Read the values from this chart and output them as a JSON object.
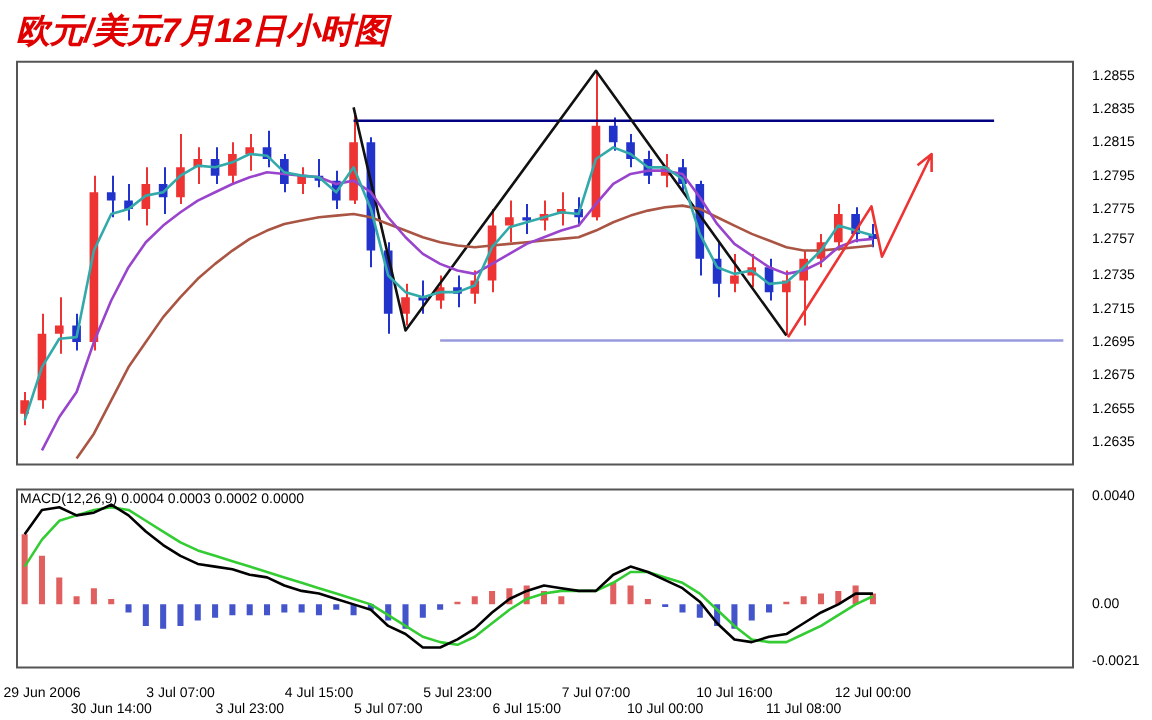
{
  "chart_data": [
    {
      "type": "candlestick",
      "title": "欧元/美元7月12日小时图",
      "tick_labels": "y",
      "marker": "none",
      "categories": [
        null,
        null,
        null,
        null,
        null,
        null,
        null,
        null,
        null,
        null,
        null,
        null,
        null,
        null,
        null,
        null,
        null,
        null,
        null,
        null,
        null,
        null,
        null,
        null,
        null,
        null,
        null,
        null,
        null,
        null,
        null,
        null,
        null,
        null,
        null,
        null,
        null,
        null,
        null,
        null,
        null,
        null,
        null,
        null,
        null,
        null,
        null,
        null,
        null,
        null,
        null,
        null,
        null,
        null,
        null,
        null,
        null,
        null,
        null,
        null,
        null
      ],
      "ohlc": [
        [
          1.2652,
          1.2665,
          1.2645,
          1.266
        ],
        [
          1.266,
          1.2712,
          1.2655,
          1.27
        ],
        [
          1.27,
          1.2722,
          1.2688,
          1.2705
        ],
        [
          1.2705,
          1.2712,
          1.269,
          1.2695
        ],
        [
          1.2695,
          1.2795,
          1.269,
          1.2785
        ],
        [
          1.2785,
          1.2795,
          1.277,
          1.278
        ],
        [
          1.278,
          1.279,
          1.2768,
          1.2775
        ],
        [
          1.2775,
          1.28,
          1.2765,
          1.279
        ],
        [
          1.279,
          1.28,
          1.2772,
          1.2782
        ],
        [
          1.2782,
          1.282,
          1.2778,
          1.28
        ],
        [
          1.28,
          1.2812,
          1.279,
          1.2805
        ],
        [
          1.2805,
          1.2812,
          1.279,
          1.2795
        ],
        [
          1.2795,
          1.2815,
          1.279,
          1.2808
        ],
        [
          1.2808,
          1.282,
          1.2798,
          1.2812
        ],
        [
          1.2812,
          1.2822,
          1.28,
          1.2805
        ],
        [
          1.2805,
          1.2808,
          1.2785,
          1.279
        ],
        [
          1.279,
          1.28,
          1.2784,
          1.2795
        ],
        [
          1.2795,
          1.2805,
          1.2788,
          1.2792
        ],
        [
          1.2792,
          1.2798,
          1.2775,
          1.278
        ],
        [
          1.278,
          1.2832,
          1.2778,
          1.2815
        ],
        [
          1.2815,
          1.2818,
          1.274,
          1.275
        ],
        [
          1.275,
          1.2755,
          1.27,
          1.2712
        ],
        [
          1.2712,
          1.273,
          1.2705,
          1.2722
        ],
        [
          1.2722,
          1.2732,
          1.2712,
          1.272
        ],
        [
          1.272,
          1.2735,
          1.2715,
          1.2728
        ],
        [
          1.2728,
          1.2735,
          1.2716,
          1.2724
        ],
        [
          1.2724,
          1.2738,
          1.2718,
          1.2732
        ],
        [
          1.2732,
          1.2775,
          1.2725,
          1.2765
        ],
        [
          1.2765,
          1.278,
          1.2755,
          1.277
        ],
        [
          1.277,
          1.2778,
          1.276,
          1.2768
        ],
        [
          1.2768,
          1.278,
          1.2762,
          1.2772
        ],
        [
          1.2772,
          1.2785,
          1.2765,
          1.2775
        ],
        [
          1.2775,
          1.2782,
          1.2765,
          1.277
        ],
        [
          1.277,
          1.2858,
          1.2768,
          1.2825
        ],
        [
          1.2825,
          1.283,
          1.281,
          1.2815
        ],
        [
          1.2815,
          1.282,
          1.28,
          1.2805
        ],
        [
          1.2805,
          1.281,
          1.279,
          1.2795
        ],
        [
          1.2795,
          1.2808,
          1.2788,
          1.28
        ],
        [
          1.28,
          1.2805,
          1.2785,
          1.279
        ],
        [
          1.279,
          1.2792,
          1.2735,
          1.2745
        ],
        [
          1.2745,
          1.2755,
          1.2722,
          1.273
        ],
        [
          1.273,
          1.2748,
          1.2725,
          1.2735
        ],
        [
          1.2735,
          1.2748,
          1.2728,
          1.274
        ],
        [
          1.274,
          1.2745,
          1.272,
          1.2725
        ],
        [
          1.2725,
          1.2738,
          1.2699,
          1.2732
        ],
        [
          1.2732,
          1.275,
          1.2705,
          1.2745
        ],
        [
          1.2745,
          1.276,
          1.274,
          1.2755
        ],
        [
          1.2755,
          1.2778,
          1.275,
          1.2772
        ],
        [
          1.2772,
          1.2776,
          1.2755,
          1.276
        ],
        [
          1.276,
          1.2766,
          1.2752,
          1.2757
        ],
        null,
        null,
        null,
        null,
        null,
        null,
        null,
        null,
        null,
        null,
        null
      ],
      "colors": [
        "#ee3333",
        "#ee3333",
        "#ee3333",
        "#2233cc",
        "#ee3333",
        "#2233cc",
        "#2233cc",
        "#ee3333",
        "#2233cc",
        "#ee3333",
        "#ee3333",
        "#2233cc",
        "#ee3333",
        "#ee3333",
        "#2233cc",
        "#2233cc",
        "#ee3333",
        "#2233cc",
        "#2233cc",
        "#ee3333",
        "#2233cc",
        "#2233cc",
        "#ee3333",
        "#2233cc",
        "#ee3333",
        "#2233cc",
        "#ee3333",
        "#ee3333",
        "#ee3333",
        "#2233cc",
        "#ee3333",
        "#ee3333",
        "#2233cc",
        "#ee3333",
        "#2233cc",
        "#2233cc",
        "#2233cc",
        "#ee3333",
        "#2233cc",
        "#2233cc",
        "#2233cc",
        "#ee3333",
        "#ee3333",
        "#2233cc",
        "#ee3333",
        "#ee3333",
        "#ee3333",
        "#ee3333",
        "#2233cc",
        "#2233cc",
        null,
        null,
        null,
        null,
        null,
        null,
        null,
        null,
        null,
        null,
        null
      ],
      "series": [
        {
          "type": "line",
          "color": "#33aaaa",
          "values": [
            1.2648,
            1.268,
            1.2697,
            1.2698,
            1.275,
            1.2772,
            1.2775,
            1.2783,
            1.2785,
            1.2795,
            1.2801,
            1.28,
            1.2803,
            1.2808,
            1.2807,
            1.2797,
            1.2795,
            1.2794,
            1.2785,
            1.28,
            1.2775,
            1.2735,
            1.2725,
            1.2722,
            1.2725,
            1.2725,
            1.2729,
            1.2752,
            1.2764,
            1.2767,
            1.277,
            1.2773,
            1.2772,
            1.2805,
            1.2812,
            1.2808,
            1.28,
            1.28,
            1.2793,
            1.276,
            1.274,
            1.2736,
            1.2738,
            1.273,
            1.2731,
            1.274,
            1.275,
            1.2765,
            1.2762,
            1.2759,
            null,
            null,
            null,
            null,
            null,
            null,
            null,
            null,
            null,
            null,
            null
          ]
        },
        {
          "type": "line",
          "color": "#9944cc",
          "values": [
            null,
            1.263,
            1.265,
            1.2665,
            1.2695,
            1.272,
            1.274,
            1.2755,
            1.2765,
            1.2773,
            1.278,
            1.2785,
            1.279,
            1.2794,
            1.2797,
            1.2796,
            1.2795,
            1.2794,
            1.279,
            1.2792,
            1.2785,
            1.277,
            1.2758,
            1.2748,
            1.2742,
            1.2738,
            1.2736,
            1.2742,
            1.2748,
            1.2754,
            1.2758,
            1.2762,
            1.2765,
            1.2778,
            1.279,
            1.2796,
            1.2798,
            1.2798,
            1.2796,
            1.2782,
            1.2766,
            1.2754,
            1.2747,
            1.274,
            1.2736,
            1.2738,
            1.2743,
            1.2752,
            1.2756,
            1.2757,
            null,
            null,
            null,
            null,
            null,
            null,
            null,
            null,
            null,
            null,
            null
          ]
        },
        {
          "type": "line",
          "color": "#aa5544",
          "values": [
            null,
            null,
            null,
            1.2625,
            1.264,
            1.266,
            1.268,
            1.2695,
            1.271,
            1.2722,
            1.2733,
            1.2742,
            1.275,
            1.2757,
            1.2762,
            1.2766,
            1.2768,
            1.277,
            1.2771,
            1.2772,
            1.277,
            1.2766,
            1.2762,
            1.2758,
            1.2755,
            1.2753,
            1.2752,
            1.2753,
            1.2754,
            1.2755,
            1.2756,
            1.2757,
            1.2758,
            1.2762,
            1.2767,
            1.2771,
            1.2774,
            1.2776,
            1.2777,
            1.2775,
            1.277,
            1.2765,
            1.276,
            1.2756,
            1.2752,
            1.275,
            1.275,
            1.2751,
            1.2752,
            1.2753,
            null,
            null,
            null,
            null,
            null,
            null,
            null,
            null,
            null,
            null,
            null
          ]
        },
        {
          "type": "line",
          "color": "#111111",
          "values": [
            null,
            null,
            null,
            null,
            null,
            null,
            null,
            null,
            null,
            null,
            null,
            null,
            null,
            null,
            null,
            null,
            null,
            null,
            null,
            1.2836,
            null,
            null,
            1.2702,
            null,
            null,
            null,
            null,
            null,
            null,
            null,
            null,
            null,
            null,
            1.2858,
            null,
            null,
            null,
            null,
            null,
            null,
            null,
            null,
            null,
            null,
            1.2699,
            null,
            null,
            null,
            null,
            null,
            null,
            null,
            null,
            null,
            null,
            null,
            null,
            null,
            null,
            null,
            null
          ]
        },
        {
          "type": "line",
          "color": "#000080",
          "values": [
            null,
            null,
            null,
            null,
            null,
            null,
            null,
            null,
            null,
            null,
            null,
            null,
            null,
            null,
            null,
            null,
            null,
            null,
            null,
            1.2828,
            null,
            null,
            null,
            null,
            null,
            null,
            null,
            null,
            null,
            null,
            null,
            null,
            null,
            null,
            null,
            null,
            null,
            null,
            null,
            null,
            null,
            null,
            null,
            null,
            null,
            null,
            null,
            null,
            null,
            null,
            null,
            null,
            null,
            null,
            null,
            null,
            1.2828,
            null,
            null,
            null,
            null
          ]
        },
        {
          "type": "line",
          "color": "#9999dd",
          "values": [
            null,
            null,
            null,
            null,
            null,
            null,
            null,
            null,
            null,
            null,
            null,
            null,
            null,
            null,
            null,
            null,
            null,
            null,
            null,
            null,
            null,
            null,
            null,
            null,
            1.2696,
            null,
            null,
            null,
            null,
            null,
            null,
            null,
            null,
            null,
            null,
            null,
            null,
            null,
            null,
            null,
            null,
            null,
            null,
            null,
            null,
            null,
            null,
            null,
            null,
            null,
            null,
            null,
            null,
            null,
            null,
            null,
            null,
            null,
            null,
            null,
            1.2696
          ]
        }
      ],
      "ylim": [
        1.2622,
        1.2864
      ],
      "yticks": [
        1.2855,
        1.2835,
        1.2815,
        1.2795,
        1.2775,
        1.2757,
        1.2735,
        1.2715,
        1.2695,
        1.2675,
        1.2655,
        1.2635
      ]
    },
    {
      "type": "bar",
      "annotations": [
        "MACD(12,26,9) 0.0004 0.0003 0.0002 0.0000"
      ],
      "marker": "none",
      "categories": [
        null,
        "29 Jun 2006",
        null,
        null,
        null,
        "30 Jun 14:00",
        null,
        null,
        null,
        "3 Jul 07:00",
        null,
        null,
        null,
        "3 Jul 23:00",
        null,
        null,
        null,
        "4 Jul 15:00",
        null,
        null,
        null,
        "5 Jul 07:00",
        null,
        null,
        null,
        "5 Jul 23:00",
        null,
        null,
        null,
        "6 Jul 15:00",
        null,
        null,
        null,
        "7 Jul 07:00",
        null,
        null,
        null,
        "10 Jul 00:00",
        null,
        null,
        null,
        "10 Jul 16:00",
        null,
        null,
        null,
        "11 Jul 08:00",
        null,
        null,
        null,
        "12 Jul 00:00",
        null,
        null,
        null,
        null,
        null,
        null,
        null,
        null,
        null,
        null,
        null
      ],
      "series": [
        {
          "type": "bar",
          "color": "#e06060",
          "values": [
            0.0026,
            0.0018,
            0.001,
            0.0003,
            0.0006,
            0.0002,
            null,
            null,
            null,
            null,
            null,
            null,
            null,
            null,
            null,
            null,
            null,
            null,
            null,
            null,
            null,
            null,
            null,
            null,
            null,
            0.0001,
            0.0003,
            0.0005,
            0.0006,
            0.0007,
            0.0005,
            0.0003,
            0.0,
            0.0,
            0.0008,
            0.0007,
            0.0002,
            null,
            null,
            null,
            null,
            null,
            null,
            null,
            0.0001,
            0.0003,
            0.0004,
            0.0005,
            0.0007,
            0.0004,
            null,
            null,
            null,
            null,
            null,
            null,
            null,
            null,
            null,
            null,
            null
          ]
        },
        {
          "type": "bar",
          "color": "#4455cc",
          "values": [
            null,
            null,
            null,
            null,
            null,
            null,
            -0.0003,
            -0.0008,
            -0.0009,
            -0.0008,
            -0.0006,
            -0.0005,
            -0.0004,
            -0.0004,
            -0.0004,
            -0.0003,
            -0.0003,
            -0.0004,
            -0.0002,
            -0.0004,
            -0.0002,
            -0.0006,
            -0.0009,
            -0.0005,
            -0.0002,
            null,
            null,
            null,
            null,
            null,
            null,
            null,
            null,
            null,
            null,
            null,
            null,
            -0.0001,
            -0.0003,
            -0.0005,
            -0.0008,
            -0.0009,
            -0.0006,
            -0.0003,
            null,
            null,
            null,
            null,
            null,
            null,
            null,
            null,
            null,
            null,
            null,
            null,
            null,
            null,
            null,
            null,
            null
          ]
        },
        {
          "type": "line",
          "color": "#000000",
          "values": [
            0.0026,
            0.0035,
            0.0036,
            0.0033,
            0.0034,
            0.0037,
            0.0033,
            0.0027,
            0.0022,
            0.0018,
            0.0015,
            0.0014,
            0.0013,
            0.0011,
            0.001,
            0.0007,
            0.0005,
            0.0004,
            0.0002,
            0.0,
            -0.0002,
            -0.0008,
            -0.0011,
            -0.0016,
            -0.0016,
            -0.0013,
            -0.0009,
            -0.0003,
            0.0002,
            0.0005,
            0.0007,
            0.0006,
            0.0005,
            0.0005,
            0.0011,
            0.0014,
            0.0012,
            0.0009,
            0.0006,
            0.0001,
            -0.0007,
            -0.0013,
            -0.0014,
            -0.0012,
            -0.0011,
            -0.0007,
            -0.0003,
            0.0,
            0.0004,
            0.0004,
            null,
            null,
            null,
            null,
            null,
            null,
            null,
            null,
            null,
            null,
            null
          ]
        },
        {
          "type": "line",
          "color": "#33cc33",
          "values": [
            0.0014,
            0.0024,
            0.0031,
            0.0033,
            0.0035,
            0.0036,
            0.0035,
            0.0031,
            0.0027,
            0.0023,
            0.002,
            0.0018,
            0.0016,
            0.0014,
            0.0012,
            0.001,
            0.0008,
            0.0006,
            0.0004,
            0.0002,
            0.0,
            -0.0004,
            -0.0008,
            -0.0012,
            -0.0014,
            -0.0015,
            -0.0012,
            -0.0007,
            -0.0002,
            0.0002,
            0.0004,
            0.0005,
            0.0005,
            0.0005,
            0.0008,
            0.0012,
            0.0012,
            0.001,
            0.0008,
            0.0004,
            -0.0002,
            -0.0008,
            -0.0013,
            -0.0014,
            -0.0014,
            -0.0011,
            -0.0008,
            -0.0004,
            0.0,
            0.0003,
            null,
            null,
            null,
            null,
            null,
            null,
            null,
            null,
            null,
            null,
            null
          ]
        }
      ],
      "ylim": [
        -0.0023,
        0.0043
      ],
      "yticks": [
        {
          "value": 0.004,
          "label": "0.0040"
        },
        {
          "value": 0,
          "label": "0.00"
        },
        {
          "value": -0.0021,
          "label": "-0.0021"
        }
      ]
    }
  ]
}
